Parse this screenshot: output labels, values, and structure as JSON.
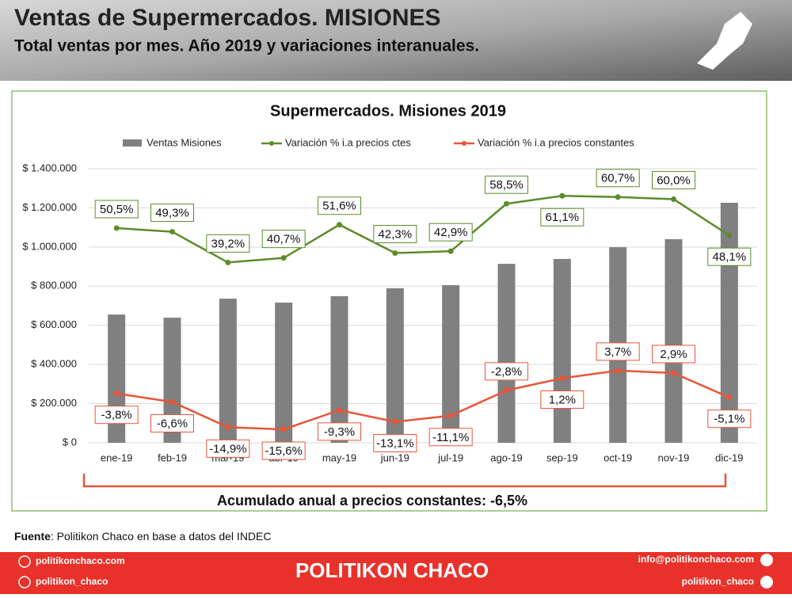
{
  "header": {
    "title": "Ventas de Supermercados. MISIONES",
    "subtitle": "Total ventas por mes. Año 2019 y variaciones interanuales."
  },
  "chart_data": {
    "type": "bar",
    "title": "Supermercados. Misiones 2019",
    "categories": [
      "ene-19",
      "feb-19",
      "mar-19",
      "abr-19",
      "may-19",
      "jun-19",
      "jul-19",
      "ago-19",
      "sep-19",
      "oct-19",
      "nov-19",
      "dic-19"
    ],
    "series": [
      {
        "name": "Ventas Misiones",
        "type": "bar",
        "color": "#808080",
        "values": [
          655000,
          639000,
          736000,
          716000,
          749000,
          789000,
          805000,
          914000,
          939000,
          999000,
          1040000,
          1226000
        ]
      },
      {
        "name": "Variación % i.a precios ctes",
        "type": "line",
        "axis": "y2",
        "color": "#5b8c2a",
        "values": [
          50.5,
          49.3,
          39.2,
          40.7,
          51.6,
          42.3,
          42.9,
          58.5,
          61.1,
          60.7,
          60.0,
          48.1
        ],
        "value_labels": [
          "50,5%",
          "49,3%",
          "39,2%",
          "40,7%",
          "51,6%",
          "42,3%",
          "42,9%",
          "58,5%",
          "61,1%",
          "60,7%",
          "60,0%",
          "48,1%"
        ]
      },
      {
        "name": "Variación % i.a precios constantes",
        "type": "line",
        "axis": "y2",
        "color": "#e8553a",
        "values": [
          -3.8,
          -6.6,
          -14.9,
          -15.6,
          -9.3,
          -13.1,
          -11.1,
          -2.8,
          1.2,
          3.7,
          2.9,
          -5.1
        ],
        "value_labels": [
          "-3,8%",
          "-6,6%",
          "-14,9%",
          "-15,6%",
          "-9,3%",
          "-13,1%",
          "-11,1%",
          "-2,8%",
          "1,2%",
          "3,7%",
          "2,9%",
          "-5,1%"
        ]
      }
    ],
    "ylim": [
      0,
      1400000
    ],
    "yticks": [
      {
        "value": 0,
        "label": "$ 0"
      },
      {
        "value": 200000,
        "label": "$ 200.000"
      },
      {
        "value": 400000,
        "label": "$ 400.000"
      },
      {
        "value": 600000,
        "label": "$ 600.000"
      },
      {
        "value": 800000,
        "label": "$ 800.000"
      },
      {
        "value": 1000000,
        "label": "$ 1.000.000"
      },
      {
        "value": 1200000,
        "label": "$ 1.200.000"
      },
      {
        "value": 1400000,
        "label": "$ 1.400.000"
      }
    ],
    "y2lim": [
      -20,
      70
    ],
    "grid": true,
    "legend": "top",
    "annotation": "Acumulado anual a precios constantes: -6,5%"
  },
  "source": {
    "label": "Fuente",
    "text": ": Politikon Chaco en base a datos del INDEC"
  },
  "footer": {
    "web": "politikonchaco.com",
    "instagram": "politikon_chaco",
    "brand": "POLITIKON CHACO",
    "email": "info@politikonchaco.com",
    "twitter": "politikon_chaco"
  }
}
